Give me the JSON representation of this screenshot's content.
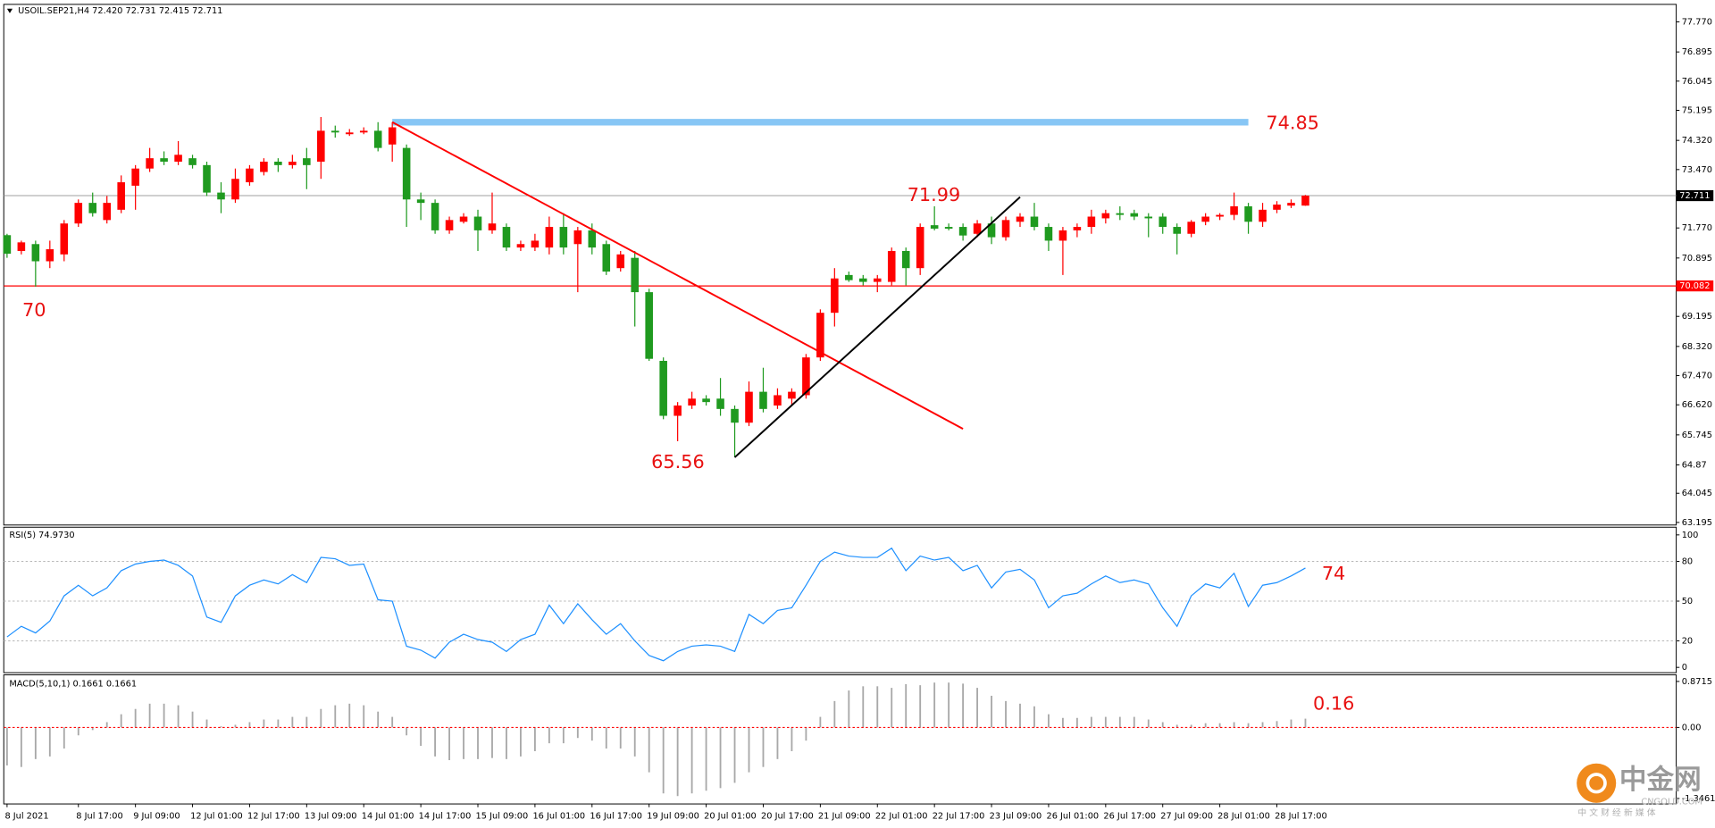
{
  "chart_data": [
    {
      "type": "candlestick",
      "title": "USOIL.SEP21,H4  72.420 72.731 72.415 72.711",
      "categories": [
        "8 Jul 2021",
        null,
        null,
        null,
        null,
        "8 Jul 17:00",
        null,
        null,
        null,
        "9 Jul 09:00",
        null,
        null,
        null,
        "12 Jul 01:00",
        null,
        null,
        null,
        "12 Jul 17:00",
        null,
        null,
        null,
        "13 Jul 09:00",
        null,
        null,
        null,
        "14 Jul 01:00",
        null,
        null,
        null,
        "14 Jul 17:00",
        null,
        null,
        null,
        "15 Jul 09:00",
        null,
        null,
        null,
        "16 Jul 01:00",
        null,
        null,
        null,
        "16 Jul 17:00",
        null,
        null,
        null,
        "19 Jul 09:00",
        null,
        null,
        null,
        "20 Jul 01:00",
        null,
        null,
        null,
        "20 Jul 17:00",
        null,
        null,
        null,
        "21 Jul 09:00",
        null,
        null,
        null,
        "22 Jul 01:00",
        null,
        null,
        null,
        "22 Jul 17:00",
        null,
        null,
        null,
        "23 Jul 09:00",
        null,
        null,
        null,
        "26 Jul 01:00",
        null,
        null,
        null,
        "26 Jul 17:00",
        null,
        null,
        null,
        "27 Jul 09:00",
        null,
        null,
        null,
        "28 Jul 01:00",
        null,
        null,
        null,
        "28 Jul 17:00",
        null,
        null
      ],
      "open": [
        71.56,
        71.1,
        71.3,
        70.8,
        71.0,
        71.9,
        72.5,
        72.0,
        72.3,
        73.0,
        73.5,
        73.8,
        73.7,
        73.8,
        73.6,
        72.8,
        72.6,
        73.1,
        73.4,
        73.7,
        73.6,
        73.8,
        73.7,
        74.6,
        74.5,
        74.55,
        74.6,
        74.2,
        74.1,
        72.6,
        72.5,
        71.7,
        71.95,
        72.1,
        71.7,
        71.8,
        71.2,
        71.2,
        71.2,
        71.8,
        71.3,
        71.7,
        71.3,
        70.6,
        70.9,
        69.9,
        67.9,
        66.3,
        66.6,
        66.8,
        66.8,
        66.5,
        66.1,
        67.0,
        66.6,
        66.8,
        66.9,
        68.0,
        69.3,
        70.4,
        70.3,
        70.2,
        70.2,
        71.1,
        70.6,
        71.85,
        71.8,
        71.8,
        71.6,
        71.9,
        71.5,
        71.95,
        72.1,
        71.8,
        71.4,
        71.7,
        71.8,
        72.05,
        72.2,
        72.2,
        72.1,
        72.1,
        71.8,
        71.6,
        71.95,
        72.1,
        72.15,
        72.4,
        71.95,
        72.3,
        72.42,
        72.42
      ],
      "high": [
        71.6,
        71.4,
        71.4,
        71.4,
        72.0,
        72.6,
        72.8,
        72.7,
        73.3,
        73.6,
        74.1,
        74.0,
        74.3,
        73.9,
        73.7,
        73.1,
        73.5,
        73.6,
        73.8,
        73.8,
        73.9,
        74.1,
        75.0,
        74.75,
        74.65,
        74.7,
        74.85,
        74.85,
        74.2,
        72.8,
        72.6,
        72.1,
        72.2,
        72.3,
        72.8,
        71.9,
        71.4,
        71.6,
        72.1,
        72.2,
        71.8,
        71.9,
        71.4,
        71.1,
        71.1,
        70.0,
        68.0,
        66.7,
        67.0,
        66.9,
        67.4,
        66.6,
        67.3,
        67.7,
        67.1,
        67.1,
        68.1,
        69.4,
        70.6,
        70.5,
        70.4,
        70.4,
        71.2,
        71.2,
        71.9,
        72.4,
        71.9,
        71.9,
        72.0,
        72.1,
        72.1,
        72.2,
        72.5,
        71.9,
        71.8,
        71.9,
        72.3,
        72.3,
        72.4,
        72.3,
        72.2,
        72.2,
        71.9,
        72.0,
        72.2,
        72.2,
        72.8,
        72.5,
        72.5,
        72.55,
        72.6,
        72.731
      ],
      "low": [
        70.9,
        71.0,
        70.06,
        70.6,
        70.8,
        71.8,
        72.1,
        71.9,
        72.2,
        72.3,
        73.4,
        73.6,
        73.6,
        73.5,
        72.7,
        72.2,
        72.5,
        73.0,
        73.3,
        73.4,
        73.5,
        72.9,
        73.2,
        74.4,
        74.45,
        74.5,
        74.0,
        73.7,
        71.8,
        72.0,
        71.6,
        71.6,
        71.9,
        71.1,
        71.6,
        71.1,
        71.1,
        71.1,
        71.0,
        71.0,
        69.9,
        71.0,
        70.4,
        70.5,
        68.9,
        67.9,
        66.2,
        65.56,
        66.5,
        66.6,
        66.3,
        65.1,
        66.0,
        66.4,
        66.5,
        66.6,
        66.8,
        67.9,
        68.9,
        70.2,
        70.1,
        69.9,
        70.1,
        70.1,
        70.4,
        71.7,
        71.7,
        71.4,
        71.5,
        71.3,
        71.4,
        71.8,
        71.7,
        71.1,
        70.4,
        71.5,
        71.6,
        71.9,
        72.0,
        72.0,
        71.5,
        71.6,
        71.0,
        71.5,
        71.85,
        72.0,
        72.0,
        71.6,
        71.8,
        72.2,
        72.35,
        72.415
      ],
      "close": [
        71.02,
        71.35,
        70.8,
        71.15,
        71.9,
        72.5,
        72.2,
        72.5,
        73.1,
        73.5,
        73.8,
        73.7,
        73.9,
        73.6,
        72.8,
        72.6,
        73.2,
        73.5,
        73.7,
        73.6,
        73.7,
        73.6,
        74.6,
        74.55,
        74.55,
        74.6,
        74.1,
        74.7,
        72.6,
        72.5,
        71.7,
        72.0,
        72.1,
        71.7,
        71.9,
        71.2,
        71.3,
        71.4,
        71.8,
        71.2,
        71.7,
        71.2,
        70.5,
        71.0,
        69.9,
        67.96,
        66.3,
        66.6,
        66.8,
        66.7,
        66.5,
        66.1,
        67.0,
        66.5,
        66.9,
        67.0,
        68.0,
        69.3,
        70.3,
        70.25,
        70.2,
        70.3,
        71.1,
        70.6,
        71.8,
        71.75,
        71.75,
        71.55,
        71.9,
        71.5,
        72.0,
        72.1,
        71.8,
        71.4,
        71.7,
        71.8,
        72.1,
        72.2,
        72.15,
        72.1,
        72.05,
        71.8,
        71.6,
        71.95,
        72.1,
        72.15,
        72.4,
        71.95,
        72.3,
        72.45,
        72.5,
        72.711
      ],
      "up_color": "#ff0000",
      "down_color": "#1f9a1f",
      "ylim": [
        63.12,
        78.28
      ],
      "yticks": [
        {
          "value": 77.77,
          "label": "77.770"
        },
        76.895,
        76.045,
        75.195,
        {
          "value": 74.32,
          "label": "74.320"
        },
        {
          "value": 73.47,
          "label": "73.470"
        },
        {
          "value": 71.77,
          "label": "71.770"
        },
        70.895,
        69.195,
        {
          "value": 68.32,
          "label": "68.320"
        },
        {
          "value": 67.47,
          "label": "67.470"
        },
        {
          "value": 66.62,
          "label": "66.620"
        },
        65.745,
        64.87,
        64.045,
        63.195
      ],
      "price": {
        "value": 72.711,
        "label": "72.711"
      },
      "levels": [
        {
          "value": 74.85,
          "color": "#87c6f5",
          "from": 27,
          "to": 87
        },
        {
          "value": 70.082,
          "label": "70.082",
          "color": "#ff0000"
        }
      ],
      "trendlines": [
        {
          "color": "#ff0000",
          "from": [
            27,
            74.85
          ],
          "to": [
            67,
            65.92
          ]
        },
        {
          "color": "#000000",
          "from": [
            51,
            65.09
          ],
          "to": [
            71,
            72.67
          ]
        }
      ],
      "annotations": [
        "74.85",
        "70",
        "71.99",
        "65.56"
      ]
    },
    {
      "type": "line",
      "title": "RSI(5) 74.9730",
      "color": "#1e90ff",
      "values": [
        23,
        31,
        26,
        35,
        54,
        62,
        54,
        60,
        73,
        78,
        80,
        81,
        77,
        69,
        38,
        34,
        54,
        62,
        66,
        63,
        70,
        64,
        83,
        82,
        77,
        78,
        51,
        50,
        16,
        13,
        7,
        19,
        25,
        21,
        19,
        12,
        21,
        25,
        47,
        33,
        48,
        36,
        25,
        33,
        20,
        9,
        5,
        12,
        16,
        17,
        16,
        12,
        40,
        33,
        43,
        45,
        62,
        80,
        87,
        84,
        83,
        83,
        90,
        73,
        84,
        81,
        83,
        73,
        77,
        60,
        72,
        74,
        66,
        45,
        54,
        56,
        63,
        69,
        64,
        66,
        63,
        45,
        31,
        54,
        63,
        60,
        71,
        46,
        62,
        64,
        69,
        74.973
      ],
      "ylim": [
        -4,
        105.8
      ],
      "yticks": [
        0,
        20,
        50,
        80,
        100
      ],
      "levels": [
        20,
        50,
        80
      ],
      "level_color": "#b8b8b8",
      "annotations": [
        "74"
      ]
    },
    {
      "type": "bar",
      "title": "MACD(5,10,1) 0.1661 0.1661",
      "color": "#a8a8a8",
      "values": [
        -0.72,
        -0.75,
        -0.6,
        -0.55,
        -0.4,
        -0.15,
        -0.05,
        0.1,
        0.25,
        0.35,
        0.45,
        0.45,
        0.42,
        0.3,
        0.15,
        0.02,
        0.05,
        0.1,
        0.15,
        0.15,
        0.2,
        0.2,
        0.35,
        0.42,
        0.45,
        0.42,
        0.3,
        0.2,
        -0.15,
        -0.35,
        -0.55,
        -0.62,
        -0.6,
        -0.6,
        -0.58,
        -0.6,
        -0.55,
        -0.45,
        -0.3,
        -0.3,
        -0.2,
        -0.25,
        -0.4,
        -0.4,
        -0.55,
        -0.85,
        -1.25,
        -1.3,
        -1.25,
        -1.2,
        -1.15,
        -1.05,
        -0.85,
        -0.75,
        -0.6,
        -0.45,
        -0.25,
        0.2,
        0.5,
        0.7,
        0.78,
        0.78,
        0.75,
        0.82,
        0.8,
        0.85,
        0.85,
        0.83,
        0.75,
        0.6,
        0.5,
        0.45,
        0.4,
        0.25,
        0.18,
        0.18,
        0.2,
        0.2,
        0.2,
        0.2,
        0.15,
        0.1,
        0.05,
        0.05,
        0.08,
        0.08,
        0.1,
        0.08,
        0.1,
        0.12,
        0.15,
        0.1661
      ],
      "ylim": [
        -1.45,
        0.996
      ],
      "yticks": [
        0.8715,
        {
          "value": 0,
          "label": "0.00"
        },
        {
          "value": -1.3461,
          "label": "-1.3461"
        }
      ],
      "levels": [
        0
      ],
      "level_color": "#ff0000",
      "annotations": [
        "0.16"
      ]
    }
  ],
  "watermark": {
    "name": "中金网",
    "site": "CNGOLD.COM",
    "slogan": "中 文 财 经 新 媒 体"
  }
}
